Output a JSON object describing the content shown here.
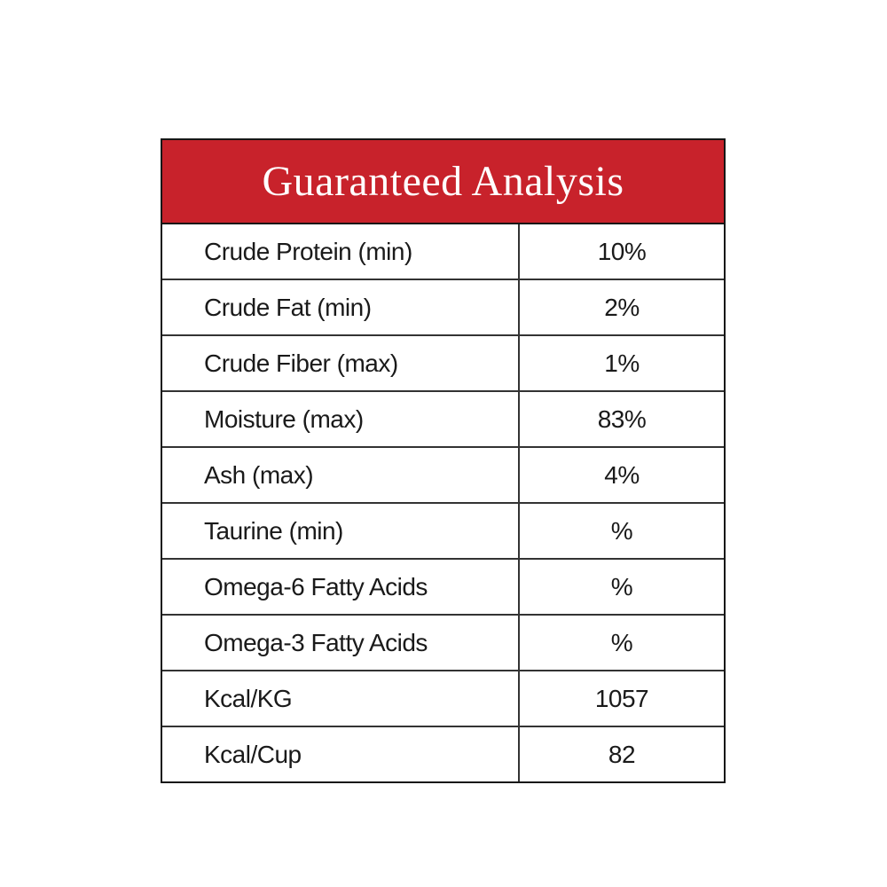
{
  "header": {
    "title": "Guaranteed Analysis"
  },
  "colors": {
    "header_bg": "#C8222B",
    "header_text": "#FFFFFF",
    "border": "#161616",
    "inner_line": "#333333",
    "body_text": "#1A1A1A"
  },
  "table": {
    "rows": [
      {
        "label": "Crude Protein (min)",
        "value": "10%"
      },
      {
        "label": "Crude Fat (min)",
        "value": "2%"
      },
      {
        "label": "Crude Fiber (max)",
        "value": "1%"
      },
      {
        "label": "Moisture (max)",
        "value": "83%"
      },
      {
        "label": "Ash (max)",
        "value": "4%"
      },
      {
        "label": "Taurine (min)",
        "value": "%"
      },
      {
        "label": "Omega-6 Fatty Acids",
        "value": "%"
      },
      {
        "label": "Omega-3 Fatty Acids",
        "value": "%"
      },
      {
        "label": "Kcal/KG",
        "value": "1057"
      },
      {
        "label": "Kcal/Cup",
        "value": "82"
      }
    ]
  }
}
